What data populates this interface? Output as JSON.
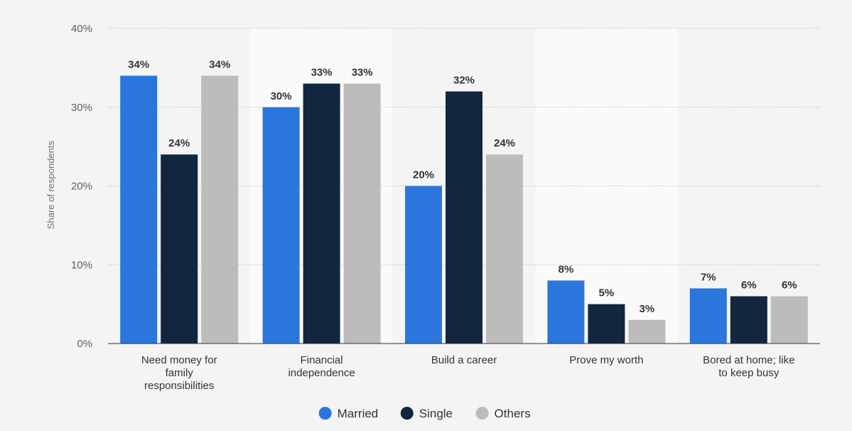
{
  "chart_data": {
    "type": "bar",
    "title": "",
    "xlabel": "",
    "ylabel": "Share of respondents",
    "ylim": [
      0,
      40
    ],
    "yticks": [
      "0%",
      "10%",
      "20%",
      "30%",
      "40%"
    ],
    "ytick_values": [
      0,
      10,
      20,
      30,
      40
    ],
    "grid": true,
    "legend_position": "bottom",
    "categories": [
      "Need money for family responsibilities",
      "Financial independence",
      "Build a career",
      "Prove my worth",
      "Bored at home; like to keep busy"
    ],
    "category_lines": [
      [
        "Need money for",
        "family",
        "responsibilities"
      ],
      [
        "Financial",
        "independence"
      ],
      [
        "Build a career"
      ],
      [
        "Prove my worth"
      ],
      [
        "Bored at home; like",
        "to keep busy"
      ]
    ],
    "series": [
      {
        "name": "Married",
        "color": "#2a76dd",
        "values": [
          34,
          30,
          20,
          8,
          7
        ],
        "labels": [
          "34%",
          "30%",
          "20%",
          "8%",
          "7%"
        ]
      },
      {
        "name": "Single",
        "color": "#13263f",
        "values": [
          24,
          33,
          32,
          5,
          6
        ],
        "labels": [
          "24%",
          "33%",
          "32%",
          "5%",
          "6%"
        ]
      },
      {
        "name": "Others",
        "color": "#bcbcbc",
        "values": [
          34,
          33,
          24,
          3,
          6
        ],
        "labels": [
          "34%",
          "33%",
          "24%",
          "3%",
          "6%"
        ]
      }
    ]
  }
}
